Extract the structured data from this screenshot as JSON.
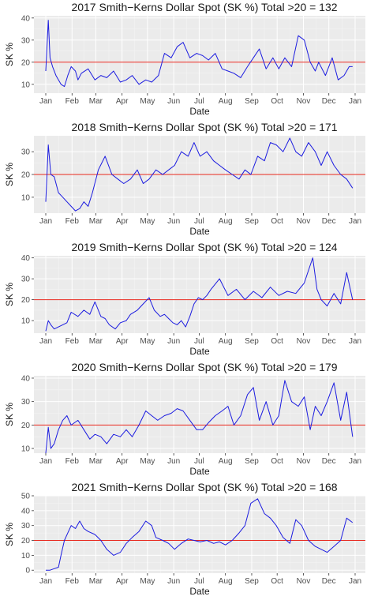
{
  "chart_data": [
    {
      "type": "line",
      "title": "2017  Smith−Kerns Dollar Spot (SK %)   Total >20 = 132",
      "xlabel": "Date",
      "ylabel": "SK %",
      "x_ticks": [
        "Jan",
        "Feb",
        "Mar",
        "Apr",
        "May",
        "Jun",
        "Jul",
        "Aug",
        "Sep",
        "Oct",
        "Nov",
        "Dec",
        "Jan"
      ],
      "y_ticks": [
        "10",
        "20",
        "30",
        "40"
      ],
      "ylim": [
        6,
        41
      ],
      "reference_line": 20,
      "line_color": "#1c1ce0",
      "ref_color": "#e8281e",
      "grid": true,
      "x_day": [
        0,
        3,
        5,
        8,
        12,
        18,
        22,
        26,
        30,
        35,
        38,
        42,
        50,
        58,
        65,
        72,
        80,
        88,
        95,
        102,
        110,
        118,
        125,
        133,
        140,
        148,
        155,
        162,
        170,
        178,
        185,
        192,
        200,
        208,
        215,
        222,
        230,
        238,
        245,
        252,
        260,
        268,
        275,
        282,
        290,
        298,
        305,
        312,
        318,
        322,
        330,
        338,
        345,
        352,
        358,
        362
      ],
      "y": [
        16,
        39,
        22,
        18,
        14,
        10,
        9,
        14,
        18,
        16,
        12,
        15,
        17,
        12,
        14,
        13,
        16,
        11,
        12,
        14,
        10,
        12,
        11,
        14,
        24,
        22,
        27,
        29,
        22,
        24,
        23,
        21,
        24,
        17,
        16,
        15,
        13,
        18,
        22,
        26,
        17,
        22,
        17,
        22,
        18,
        32,
        30,
        20,
        16,
        20,
        14,
        22,
        12,
        14,
        18,
        18
      ]
    },
    {
      "type": "line",
      "title": "2018  Smith−Kerns Dollar Spot (SK %)   Total >20 = 171",
      "xlabel": "Date",
      "ylabel": "SK %",
      "x_ticks": [
        "Jan",
        "Feb",
        "Mar",
        "Apr",
        "May",
        "Jun",
        "Jul",
        "Aug",
        "Sep",
        "Oct",
        "Nov",
        "Dec",
        "Jan"
      ],
      "y_ticks": [
        "10",
        "20",
        "30"
      ],
      "ylim": [
        3,
        37
      ],
      "reference_line": 20,
      "line_color": "#1c1ce0",
      "ref_color": "#e8281e",
      "grid": true,
      "x_day": [
        0,
        3,
        6,
        10,
        15,
        20,
        25,
        30,
        35,
        40,
        45,
        50,
        55,
        62,
        70,
        78,
        85,
        92,
        100,
        108,
        115,
        122,
        130,
        138,
        145,
        152,
        160,
        168,
        175,
        182,
        190,
        198,
        205,
        212,
        220,
        228,
        235,
        242,
        250,
        258,
        265,
        272,
        280,
        288,
        295,
        302,
        310,
        318,
        325,
        332,
        340,
        348,
        355,
        362
      ],
      "y": [
        8,
        33,
        20,
        19,
        12,
        10,
        8,
        6,
        4,
        5,
        8,
        6,
        12,
        22,
        28,
        20,
        18,
        16,
        18,
        22,
        16,
        18,
        22,
        20,
        22,
        24,
        30,
        28,
        34,
        28,
        30,
        26,
        24,
        22,
        20,
        18,
        22,
        20,
        28,
        26,
        34,
        33,
        30,
        36,
        30,
        28,
        34,
        30,
        24,
        30,
        24,
        20,
        18,
        14
      ]
    },
    {
      "type": "line",
      "title": "2019  Smith−Kerns Dollar Spot (SK %)   Total >20 = 124",
      "xlabel": "Date",
      "ylabel": "SK %",
      "x_ticks": [
        "Jan",
        "Feb",
        "Mar",
        "Apr",
        "May",
        "Jun",
        "Jul",
        "Aug",
        "Sep",
        "Oct",
        "Nov",
        "Dec",
        "Jan"
      ],
      "y_ticks": [
        "10",
        "20",
        "30",
        "40"
      ],
      "ylim": [
        4,
        41
      ],
      "reference_line": 20,
      "line_color": "#1c1ce0",
      "ref_color": "#e8281e",
      "grid": true,
      "x_day": [
        0,
        3,
        6,
        10,
        15,
        20,
        25,
        30,
        38,
        45,
        52,
        58,
        65,
        70,
        75,
        82,
        88,
        95,
        100,
        108,
        115,
        122,
        128,
        135,
        140,
        145,
        150,
        155,
        160,
        165,
        170,
        175,
        180,
        185,
        190,
        195,
        205,
        215,
        225,
        235,
        245,
        255,
        265,
        275,
        285,
        295,
        305,
        310,
        315,
        320,
        325,
        332,
        340,
        348,
        355,
        362
      ],
      "y": [
        5,
        10,
        8,
        6,
        7,
        8,
        9,
        14,
        12,
        15,
        13,
        19,
        12,
        11,
        8,
        6,
        9,
        10,
        13,
        15,
        18,
        21,
        15,
        12,
        13,
        11,
        9,
        8,
        10,
        7,
        12,
        18,
        21,
        20,
        22,
        25,
        30,
        22,
        25,
        20,
        24,
        21,
        26,
        22,
        24,
        23,
        28,
        34,
        40,
        25,
        20,
        17,
        23,
        18,
        33,
        20
      ]
    },
    {
      "type": "line",
      "title": "2020  Smith−Kerns Dollar Spot (SK %)   Total >20 = 179",
      "xlabel": "Date",
      "ylabel": "SK %",
      "x_ticks": [
        "Jan",
        "Feb",
        "Mar",
        "Apr",
        "May",
        "Jun",
        "Jul",
        "Aug",
        "Sep",
        "Oct",
        "Nov",
        "Dec",
        "Jan"
      ],
      "y_ticks": [
        "10",
        "20",
        "30",
        "40"
      ],
      "ylim": [
        8,
        41
      ],
      "reference_line": 20,
      "line_color": "#1c1ce0",
      "ref_color": "#e8281e",
      "grid": true,
      "x_day": [
        0,
        3,
        6,
        10,
        15,
        20,
        25,
        30,
        38,
        45,
        52,
        58,
        65,
        72,
        80,
        88,
        95,
        102,
        110,
        118,
        125,
        132,
        140,
        148,
        155,
        162,
        170,
        178,
        185,
        192,
        200,
        208,
        215,
        222,
        230,
        238,
        245,
        252,
        260,
        268,
        275,
        282,
        290,
        298,
        305,
        312,
        318,
        325,
        332,
        340,
        348,
        355,
        362
      ],
      "y": [
        8,
        19,
        10,
        12,
        18,
        22,
        24,
        20,
        22,
        18,
        14,
        16,
        15,
        12,
        16,
        15,
        18,
        15,
        20,
        26,
        24,
        22,
        24,
        25,
        27,
        26,
        22,
        18,
        18,
        21,
        24,
        26,
        28,
        20,
        24,
        33,
        36,
        22,
        30,
        20,
        24,
        39,
        30,
        28,
        32,
        18,
        28,
        24,
        30,
        38,
        22,
        34,
        15
      ]
    },
    {
      "type": "line",
      "title": "2021  Smith−Kerns Dollar Spot (SK %)   Total >20 = 168",
      "xlabel": "Date",
      "ylabel": "SK %",
      "x_ticks": [
        "Jan",
        "Feb",
        "Mar",
        "Apr",
        "May",
        "Jun",
        "Jul",
        "Aug",
        "Sep",
        "Oct",
        "Nov",
        "Dec",
        "Jan"
      ],
      "y_ticks": [
        "0",
        "10",
        "20",
        "30",
        "40",
        "50"
      ],
      "ylim": [
        -2,
        50
      ],
      "reference_line": 20,
      "line_color": "#1c1ce0",
      "ref_color": "#e8281e",
      "grid": true,
      "x_day": [
        0,
        5,
        10,
        15,
        18,
        22,
        26,
        30,
        35,
        40,
        45,
        50,
        58,
        65,
        72,
        80,
        88,
        95,
        102,
        110,
        118,
        125,
        130,
        138,
        145,
        152,
        160,
        168,
        175,
        182,
        190,
        198,
        205,
        212,
        220,
        228,
        235,
        242,
        250,
        258,
        265,
        272,
        280,
        288,
        295,
        302,
        310,
        318,
        325,
        332,
        340,
        348,
        355,
        362
      ],
      "y": [
        0,
        0,
        1,
        2,
        10,
        20,
        25,
        30,
        28,
        33,
        28,
        26,
        24,
        20,
        14,
        10,
        12,
        18,
        22,
        26,
        33,
        30,
        22,
        20,
        18,
        14,
        18,
        21,
        20,
        19,
        20,
        18,
        19,
        17,
        20,
        25,
        30,
        45,
        48,
        38,
        35,
        30,
        22,
        18,
        34,
        30,
        20,
        16,
        14,
        12,
        16,
        20,
        35,
        32
      ]
    }
  ]
}
